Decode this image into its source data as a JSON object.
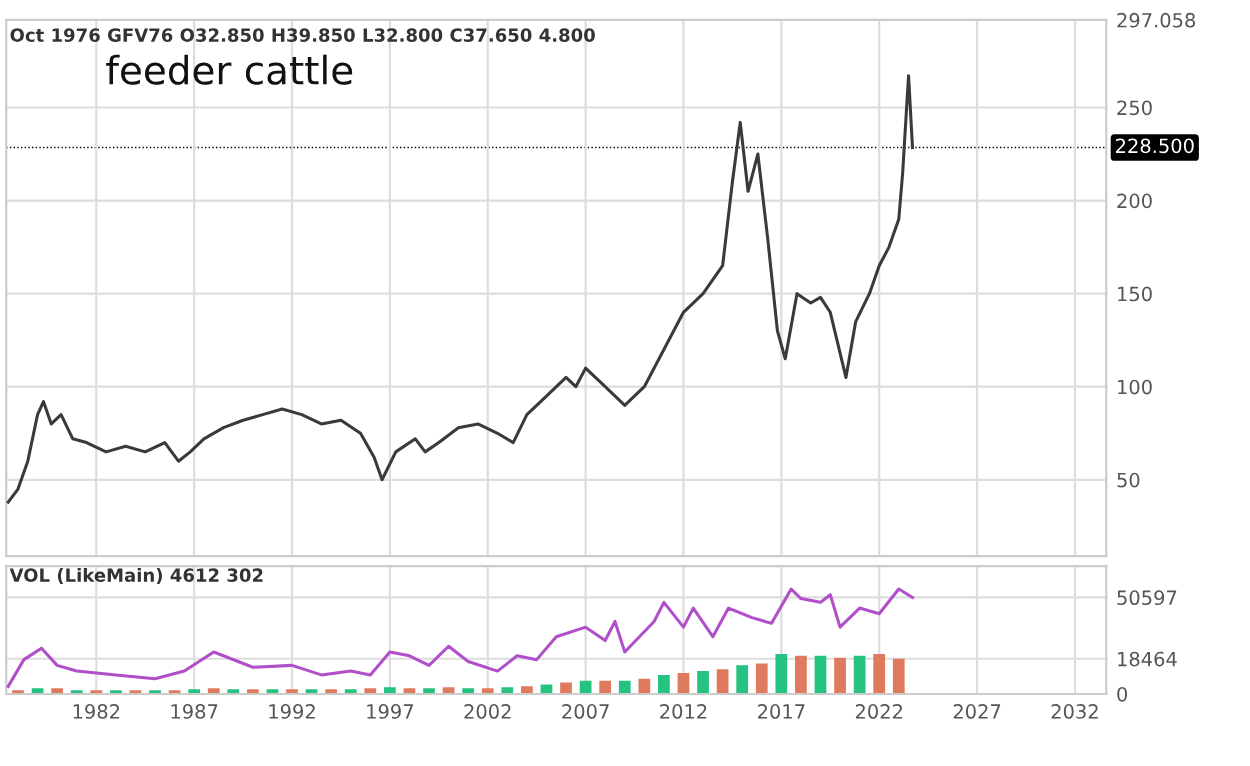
{
  "chart_data": [
    {
      "type": "line",
      "title": "feeder cattle",
      "annotations": [
        "Oct 1976 GFV76 O32.850 H39.850 L32.800 C37.650 4.800"
      ],
      "series": [
        {
          "color": "#3a3a3a",
          "x": [
            1977.5,
            1978.0,
            1978.5,
            1979.0,
            1979.3,
            1979.7,
            1980.2,
            1980.8,
            1981.5,
            1982.5,
            1983.5,
            1984.5,
            1985.5,
            1986.2,
            1986.8,
            1987.5,
            1988.5,
            1989.5,
            1990.5,
            1991.5,
            1992.5,
            1993.5,
            1994.5,
            1995.5,
            1996.2,
            1996.6,
            1997.3,
            1998.3,
            1998.8,
            1999.5,
            2000.5,
            2001.5,
            2002.5,
            2003.3,
            2004.0,
            2005.0,
            2006.0,
            2006.5,
            2007.0,
            2008.0,
            2009.0,
            2010.0,
            2011.0,
            2012.0,
            2013.0,
            2014.0,
            2014.5,
            2014.9,
            2015.3,
            2015.8,
            2016.3,
            2016.8,
            2017.2,
            2017.8,
            2018.5,
            2019.0,
            2019.5,
            2020.3,
            2020.8,
            2021.5,
            2022.0,
            2022.5,
            2023.0,
            2023.2,
            2023.4,
            2023.5,
            2023.7
          ],
          "values": [
            38,
            45,
            60,
            85,
            92,
            80,
            85,
            72,
            70,
            65,
            68,
            65,
            70,
            60,
            65,
            72,
            78,
            82,
            85,
            88,
            85,
            80,
            82,
            75,
            62,
            50,
            65,
            72,
            65,
            70,
            78,
            80,
            75,
            70,
            85,
            95,
            105,
            100,
            110,
            100,
            90,
            100,
            120,
            140,
            150,
            165,
            210,
            242,
            205,
            225,
            180,
            130,
            115,
            150,
            145,
            148,
            140,
            105,
            135,
            150,
            165,
            175,
            190,
            215,
            250,
            267,
            228.5
          ]
        }
      ],
      "xlim": [
        1977.4,
        2033.6
      ],
      "ylim": [
        9,
        297.058
      ],
      "yticks": [
        50,
        100,
        150,
        200,
        250,
        {
          "value": 297.058,
          "label": "297.058"
        }
      ],
      "xticks": [
        1982,
        1987,
        1992,
        1997,
        2002,
        2007,
        2012,
        2017,
        2022,
        2027,
        2032
      ],
      "ref_lines": [
        {
          "axis": "y",
          "value": 228.5,
          "label": "228.500",
          "color": "#000000"
        }
      ],
      "grid": true,
      "tick_labels": "y",
      "marker": "none",
      "line_style": "solid"
    },
    {
      "type": "bar",
      "annotations": [
        "VOL (LikeMain) 4612 302"
      ],
      "series": [
        {
          "type": "bar",
          "x": [
            1978,
            1979,
            1980,
            1981,
            1982,
            1983,
            1984,
            1985,
            1986,
            1987,
            1988,
            1989,
            1990,
            1991,
            1992,
            1993,
            1994,
            1995,
            1996,
            1997,
            1998,
            1999,
            2000,
            2001,
            2002,
            2003,
            2004,
            2005,
            2006,
            2007,
            2008,
            2009,
            2010,
            2011,
            2012,
            2013,
            2014,
            2015,
            2016,
            2017,
            2018,
            2019,
            2020,
            2021,
            2022,
            2023
          ],
          "values": [
            2000,
            3000,
            3000,
            2000,
            2000,
            2000,
            2000,
            2000,
            2000,
            2500,
            3000,
            2500,
            2500,
            2500,
            2500,
            2500,
            2500,
            2500,
            3000,
            3500,
            3000,
            3000,
            3500,
            3000,
            3000,
            3500,
            4000,
            5000,
            6000,
            7000,
            7000,
            7000,
            8000,
            10000,
            11000,
            12000,
            13000,
            15000,
            16000,
            21000,
            20000,
            20000,
            19000,
            20000,
            21000,
            18464
          ],
          "colors": [
            "#e07a5f",
            "#26c281",
            "#e07a5f",
            "#26c281",
            "#e07a5f",
            "#26c281",
            "#e07a5f",
            "#26c281",
            "#e07a5f",
            "#26c281",
            "#e07a5f",
            "#26c281",
            "#e07a5f",
            "#26c281",
            "#e07a5f",
            "#26c281",
            "#e07a5f",
            "#26c281",
            "#e07a5f",
            "#26c281",
            "#e07a5f",
            "#26c281",
            "#e07a5f",
            "#26c281",
            "#e07a5f",
            "#26c281",
            "#e07a5f",
            "#26c281",
            "#e07a5f",
            "#26c281",
            "#e07a5f",
            "#26c281",
            "#e07a5f",
            "#26c281",
            "#e07a5f",
            "#26c281",
            "#e07a5f",
            "#26c281",
            "#e07a5f",
            "#26c281",
            "#e07a5f",
            "#26c281",
            "#e07a5f",
            "#26c281",
            "#e07a5f",
            "#e07a5f"
          ]
        },
        {
          "type": "line",
          "color": "#b04fc9",
          "x": [
            1977.5,
            1978.3,
            1979.2,
            1980.0,
            1981.0,
            1983.0,
            1985.0,
            1986.5,
            1988.0,
            1990.0,
            1992.0,
            1993.5,
            1995.0,
            1996.0,
            1997.0,
            1998.0,
            1999.0,
            2000.0,
            2001.0,
            2002.5,
            2003.5,
            2004.5,
            2005.5,
            2007.0,
            2008.0,
            2008.5,
            2009.0,
            2010.5,
            2011.0,
            2012.0,
            2012.5,
            2013.5,
            2014.3,
            2015.5,
            2016.5,
            2017.5,
            2018.0,
            2019.0,
            2019.5,
            2020.0,
            2021.0,
            2022.0,
            2023.0,
            2023.7
          ],
          "values": [
            4000,
            18000,
            24000,
            15000,
            12000,
            10000,
            8000,
            12000,
            22000,
            14000,
            15000,
            10000,
            12000,
            10000,
            22000,
            20000,
            15000,
            25000,
            17000,
            12000,
            20000,
            18000,
            30000,
            35000,
            28000,
            38000,
            22000,
            38000,
            48000,
            35000,
            45000,
            30000,
            45000,
            40000,
            37000,
            55000,
            50000,
            48000,
            52000,
            35000,
            45000,
            42000,
            55000,
            50597
          ]
        }
      ],
      "xlim": [
        1977.4,
        2033.6
      ],
      "ylim": [
        0,
        67000
      ],
      "yticks": [
        0,
        {
          "value": 18464,
          "label": "18464"
        },
        {
          "value": 50597,
          "label": "50597"
        }
      ],
      "xticks": [
        1982,
        1987,
        1992,
        1997,
        2002,
        2007,
        2012,
        2017,
        2022,
        2027,
        2032
      ],
      "grid": true
    }
  ]
}
